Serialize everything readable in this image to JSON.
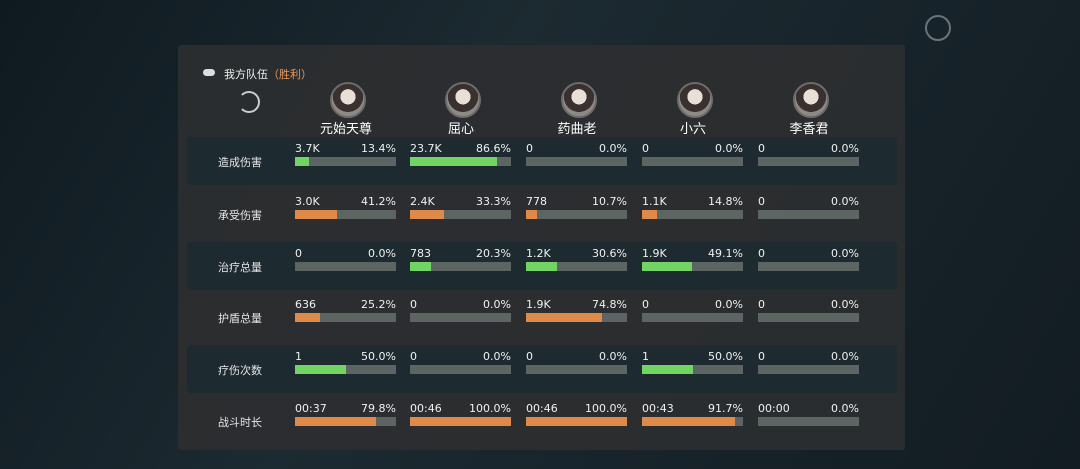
{
  "header": {
    "title": "我方队伍",
    "result": "（胜利）"
  },
  "players": [
    {
      "name": "元始天尊"
    },
    {
      "name": "屈心"
    },
    {
      "name": "药曲老"
    },
    {
      "name": "小六"
    },
    {
      "name": "李香君"
    }
  ],
  "rows": [
    {
      "label": "造成伤害",
      "color": "#72d463",
      "band": true,
      "cells": [
        {
          "amount": "3.7K",
          "percent": 13.4,
          "percent_label": "13.4%"
        },
        {
          "amount": "23.7K",
          "percent": 86.6,
          "percent_label": "86.6%"
        },
        {
          "amount": "0",
          "percent": 0,
          "percent_label": "0.0%"
        },
        {
          "amount": "0",
          "percent": 0,
          "percent_label": "0.0%"
        },
        {
          "amount": "0",
          "percent": 0,
          "percent_label": "0.0%"
        }
      ]
    },
    {
      "label": "承受伤害",
      "color": "#e08a4a",
      "band": false,
      "cells": [
        {
          "amount": "3.0K",
          "percent": 41.2,
          "percent_label": "41.2%"
        },
        {
          "amount": "2.4K",
          "percent": 33.3,
          "percent_label": "33.3%"
        },
        {
          "amount": "778",
          "percent": 10.7,
          "percent_label": "10.7%"
        },
        {
          "amount": "1.1K",
          "percent": 14.8,
          "percent_label": "14.8%"
        },
        {
          "amount": "0",
          "percent": 0,
          "percent_label": "0.0%"
        }
      ]
    },
    {
      "label": "治疗总量",
      "color": "#72d463",
      "band": true,
      "cells": [
        {
          "amount": "0",
          "percent": 0,
          "percent_label": "0.0%"
        },
        {
          "amount": "783",
          "percent": 20.3,
          "percent_label": "20.3%"
        },
        {
          "amount": "1.2K",
          "percent": 30.6,
          "percent_label": "30.6%"
        },
        {
          "amount": "1.9K",
          "percent": 49.1,
          "percent_label": "49.1%"
        },
        {
          "amount": "0",
          "percent": 0,
          "percent_label": "0.0%"
        }
      ]
    },
    {
      "label": "护盾总量",
      "color": "#e08a4a",
      "band": false,
      "cells": [
        {
          "amount": "636",
          "percent": 25.2,
          "percent_label": "25.2%"
        },
        {
          "amount": "0",
          "percent": 0,
          "percent_label": "0.0%"
        },
        {
          "amount": "1.9K",
          "percent": 74.8,
          "percent_label": "74.8%"
        },
        {
          "amount": "0",
          "percent": 0,
          "percent_label": "0.0%"
        },
        {
          "amount": "0",
          "percent": 0,
          "percent_label": "0.0%"
        }
      ]
    },
    {
      "label": "疗伤次数",
      "color": "#72d463",
      "band": true,
      "cells": [
        {
          "amount": "1",
          "percent": 50,
          "percent_label": "50.0%"
        },
        {
          "amount": "0",
          "percent": 0,
          "percent_label": "0.0%"
        },
        {
          "amount": "0",
          "percent": 0,
          "percent_label": "0.0%"
        },
        {
          "amount": "1",
          "percent": 50,
          "percent_label": "50.0%"
        },
        {
          "amount": "0",
          "percent": 0,
          "percent_label": "0.0%"
        }
      ]
    },
    {
      "label": "战斗时长",
      "color": "#e08a4a",
      "band": false,
      "cells": [
        {
          "amount": "00:37",
          "percent": 79.8,
          "percent_label": "79.8%"
        },
        {
          "amount": "00:46",
          "percent": 100,
          "percent_label": "100.0%"
        },
        {
          "amount": "00:46",
          "percent": 100,
          "percent_label": "100.0%"
        },
        {
          "amount": "00:43",
          "percent": 91.7,
          "percent_label": "91.7%"
        },
        {
          "amount": "00:00",
          "percent": 0,
          "percent_label": "0.0%"
        }
      ]
    }
  ]
}
